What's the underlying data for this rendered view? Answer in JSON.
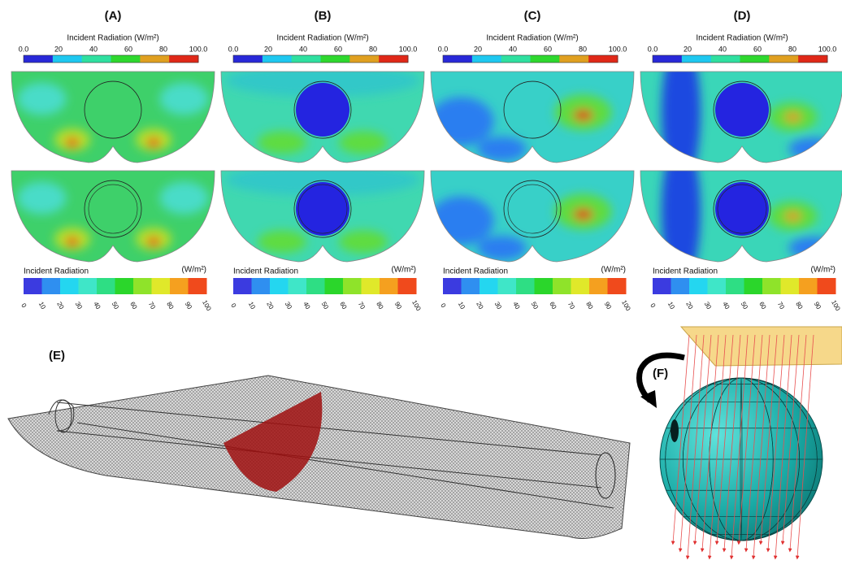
{
  "panels": [
    {
      "label": "(A)",
      "top_scale": {
        "title": "Incident Radiation (W/m²)",
        "ticks": [
          "0.0",
          "20",
          "40",
          "60",
          "80",
          "100.0"
        ]
      },
      "bottom_scale": {
        "title": "Incident Radiation",
        "unit": "(W/m²)",
        "ticks": [
          "0",
          "10",
          "20",
          "30",
          "40",
          "50",
          "60",
          "70",
          "80",
          "90",
          "100"
        ]
      }
    },
    {
      "label": "(B)",
      "top_scale": {
        "title": "Incident Radiation (W/m²)",
        "ticks": [
          "0.0",
          "20",
          "40",
          "60",
          "80",
          "100.0"
        ]
      },
      "bottom_scale": {
        "title": "Incident Radiation",
        "unit": "(W/m²)",
        "ticks": [
          "0",
          "10",
          "20",
          "30",
          "40",
          "50",
          "60",
          "70",
          "80",
          "90",
          "100"
        ]
      }
    },
    {
      "label": "(C)",
      "top_scale": {
        "title": "Incident Radiation (W/m²)",
        "ticks": [
          "0.0",
          "20",
          "40",
          "60",
          "80",
          "100.0"
        ]
      },
      "bottom_scale": {
        "title": "Incident Radiation",
        "unit": "(W/m²)",
        "ticks": [
          "0",
          "10",
          "20",
          "30",
          "40",
          "50",
          "60",
          "70",
          "80",
          "90",
          "100"
        ]
      }
    },
    {
      "label": "(D)",
      "top_scale": {
        "title": "Incident Radiation (W/m²)",
        "ticks": [
          "0.0",
          "20",
          "40",
          "60",
          "80",
          "100.0"
        ]
      },
      "bottom_scale": {
        "title": "Incident Radiation",
        "unit": "(W/m²)",
        "ticks": [
          "0",
          "10",
          "20",
          "30",
          "40",
          "50",
          "60",
          "70",
          "80",
          "90",
          "100"
        ]
      }
    }
  ],
  "mesh_figure": {
    "label": "(E)"
  },
  "sphere_figure": {
    "label": "(F)"
  }
}
